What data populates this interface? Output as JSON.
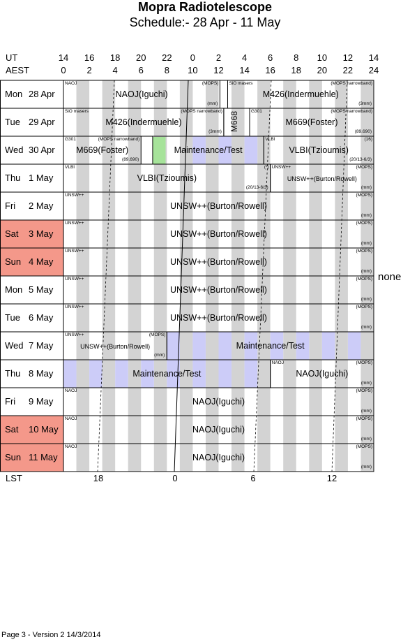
{
  "title": "Mopra Radiotelescope",
  "subtitle": "Schedule:- 28 Apr - 11 May",
  "axes": {
    "ut_label": "UT",
    "aest_label": "AEST",
    "lst_label": "LST",
    "ut_ticks": [
      "14",
      "16",
      "18",
      "20",
      "22",
      "0",
      "2",
      "4",
      "6",
      "8",
      "10",
      "12",
      "14"
    ],
    "aest_ticks": [
      "0",
      "2",
      "4",
      "6",
      "8",
      "10",
      "12",
      "14",
      "16",
      "18",
      "20",
      "22",
      "24"
    ],
    "lst_ticks": [
      "18",
      "0",
      "6",
      "12"
    ]
  },
  "days": [
    {
      "dow": "Mon",
      "date": "28 Apr",
      "weekend": false
    },
    {
      "dow": "Tue",
      "date": "29 Apr",
      "weekend": false
    },
    {
      "dow": "Wed",
      "date": "30 Apr",
      "weekend": false
    },
    {
      "dow": "Thu",
      "date": "1 May",
      "weekend": false
    },
    {
      "dow": "Fri",
      "date": "2 May",
      "weekend": false
    },
    {
      "dow": "Sat",
      "date": "3 May",
      "weekend": true
    },
    {
      "dow": "Sun",
      "date": "4 May",
      "weekend": true
    },
    {
      "dow": "Mon",
      "date": "5 May",
      "weekend": false
    },
    {
      "dow": "Tue",
      "date": "6 May",
      "weekend": false
    },
    {
      "dow": "Wed",
      "date": "7 May",
      "weekend": false
    },
    {
      "dow": "Thu",
      "date": "8 May",
      "weekend": false
    },
    {
      "dow": "Fri",
      "date": "9 May",
      "weekend": false
    },
    {
      "dow": "Sat",
      "date": "10 May",
      "weekend": true
    },
    {
      "dow": "Sun",
      "date": "11 May",
      "weekend": true
    }
  ],
  "blocks": [
    {
      "day": 0,
      "start": 0,
      "end": 12.1,
      "label": "NAOJ(Iguchi)",
      "tl": "NAOJ",
      "tr": "(MOPS)",
      "br": "(mm)"
    },
    {
      "day": 0,
      "start": 12.7,
      "end": 24,
      "label": "M426(Indermuehle)",
      "tl": "SiO masers",
      "tr": "(MOPS narrowband)",
      "br": "(3mm)"
    },
    {
      "day": 1,
      "start": 0,
      "end": 12.4,
      "label": "M426(Indermuehle)",
      "tl": "SiO masers",
      "tr": "(MOPS narrowband)",
      "br": "(3mm)"
    },
    {
      "day": 1,
      "start": 12.4,
      "end": 14.4,
      "label": "M668",
      "vertical": true
    },
    {
      "day": 1,
      "start": 14.4,
      "end": 24,
      "label": "M669(Foster)",
      "tl": "G301",
      "tr": "(MOPS narrowband)",
      "br": "(89.690)"
    },
    {
      "day": 2,
      "start": 0,
      "end": 6.0,
      "label": "M669(Foster)",
      "tl": "G301",
      "tr": "(MOPS narrowband)",
      "br": "(89.690)"
    },
    {
      "day": 2,
      "start": 6.9,
      "end": 15.5,
      "label": "Maintenance/Test",
      "maint": true,
      "clear_from": 6.9,
      "clear_to": 9.0
    },
    {
      "day": 2,
      "start": 15.5,
      "end": 24,
      "label": "VLBI(Tzioumis)",
      "tl": "VLBI",
      "tr": "(16)",
      "br": "(20/13-6/3)"
    },
    {
      "day": 3,
      "start": 0,
      "end": 16.0,
      "label": "VLBI(Tzioumis)",
      "tl": "VLBI",
      "tr": "(*)",
      "br": "(20/13-6/3)"
    },
    {
      "day": 3,
      "start": 16.0,
      "end": 24,
      "label": "UNSW++(Burton/Rowell)",
      "small_label": true,
      "tl": "UNSW++",
      "tr": "(MOPS)",
      "br": "(mm)"
    },
    {
      "day": 4,
      "start": 0,
      "end": 24,
      "label": "UNSW++(Burton/Rowell)",
      "tl": "UNSW++",
      "tr": "(MOPS)",
      "br": "(mm)"
    },
    {
      "day": 5,
      "start": 0,
      "end": 24,
      "label": "UNSW++(Burton/Rowell)",
      "tl": "UNSW++",
      "tr": "(MOPS)",
      "br": "(mm)"
    },
    {
      "day": 6,
      "start": 0,
      "end": 24,
      "label": "UNSW++(Burton/Rowell)",
      "tl": "UNSW++",
      "tr": "(MOPS)",
      "br": "(mm)"
    },
    {
      "day": 7,
      "start": 0,
      "end": 24,
      "label": "UNSW++(Burton/Rowell)",
      "tl": "UNSW++",
      "tr": "(MOPS)",
      "br": "(mm)"
    },
    {
      "day": 8,
      "start": 0,
      "end": 24,
      "label": "UNSW++(Burton/Rowell)",
      "tl": "UNSW++",
      "tr": "(MOPS)",
      "br": "(mm)"
    },
    {
      "day": 9,
      "start": 0,
      "end": 8.0,
      "label": "UNSW++(Burton/Rowell)",
      "small_label": true,
      "tl": "UNSW++",
      "tr": "(MOPS)",
      "br": "(mm)"
    },
    {
      "day": 9,
      "start": 8.0,
      "end": 24,
      "label": "Maintenance/Test",
      "maint": true
    },
    {
      "day": 10,
      "start": 0,
      "end": 16.0,
      "label": "Maintenance/Test",
      "maint": true
    },
    {
      "day": 10,
      "start": 16.0,
      "end": 24,
      "label": "NAOJ(Iguchi)",
      "tl": "NAOJ",
      "tr": "(MOPS)",
      "br": "(mm)"
    },
    {
      "day": 11,
      "start": 0,
      "end": 24,
      "label": "NAOJ(Iguchi)",
      "tl": "NAOJ",
      "tr": "(MOPS)",
      "br": "(mm)"
    },
    {
      "day": 12,
      "start": 0,
      "end": 24,
      "label": "NAOJ(Iguchi)",
      "tl": "NAOJ",
      "tr": "(MOPS)",
      "br": "(mm)"
    },
    {
      "day": 13,
      "start": 0,
      "end": 24,
      "label": "NAOJ(Iguchi)",
      "tl": "NAOJ",
      "tr": "(MOPS)",
      "br": "(mm)"
    }
  ],
  "green_marker": {
    "day": 2,
    "start": 6.9,
    "end": 7.9
  },
  "side_note": "none",
  "footer": "Page 3 - Version 2  14/3/2014",
  "colors": {
    "weekend": "#f4988a",
    "stripe": "#d3d3d3",
    "maint": "#ccccf8",
    "green": "#a6e39a"
  }
}
